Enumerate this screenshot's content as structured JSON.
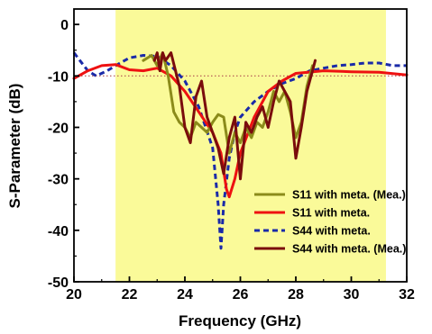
{
  "chart_data": {
    "type": "line",
    "title": "",
    "xlabel": "Frequency (GHz)",
    "ylabel": "S-Parameter (dB)",
    "xlim": [
      20,
      32
    ],
    "ylim": [
      -50,
      3
    ],
    "xticks": [
      "20",
      "22",
      "24",
      "26",
      "28",
      "30",
      "32"
    ],
    "yticks": [
      "0",
      "-10",
      "-20",
      "-30",
      "-40",
      "-50"
    ],
    "highlight_band": {
      "x": [
        21.5,
        31.25
      ],
      "color": "#fafa99"
    },
    "reference_line": {
      "y": -10,
      "color": "#b05050",
      "style": "dotted"
    },
    "legend_position": "bottom-right",
    "series": [
      {
        "name": "S11 with meta. (Mea.)",
        "color": "#8b8b1a",
        "style": "solid",
        "points": [
          [
            22.5,
            -7
          ],
          [
            22.8,
            -6
          ],
          [
            23.0,
            -8
          ],
          [
            23.2,
            -5.5
          ],
          [
            23.4,
            -10
          ],
          [
            23.6,
            -17
          ],
          [
            23.8,
            -19
          ],
          [
            24.0,
            -20
          ],
          [
            24.2,
            -22
          ],
          [
            24.4,
            -19
          ],
          [
            24.6,
            -20
          ],
          [
            24.8,
            -21
          ],
          [
            25.0,
            -19
          ],
          [
            25.2,
            -17.5
          ],
          [
            25.4,
            -18
          ],
          [
            25.6,
            -25
          ],
          [
            25.8,
            -21
          ],
          [
            26.0,
            -23
          ],
          [
            26.2,
            -20
          ],
          [
            26.4,
            -22
          ],
          [
            26.6,
            -19
          ],
          [
            26.8,
            -20
          ],
          [
            27.0,
            -17
          ],
          [
            27.2,
            -13
          ],
          [
            27.4,
            -15
          ],
          [
            27.6,
            -13
          ],
          [
            27.8,
            -17
          ],
          [
            28.0,
            -22
          ],
          [
            28.2,
            -19
          ],
          [
            28.4,
            -12
          ],
          [
            28.6,
            -8
          ]
        ]
      },
      {
        "name": "S11 with meta.",
        "color": "#ee1111",
        "style": "solid",
        "points": [
          [
            20.0,
            -10.5
          ],
          [
            20.5,
            -9
          ],
          [
            21.0,
            -8
          ],
          [
            21.5,
            -7.8
          ],
          [
            22.0,
            -8.8
          ],
          [
            22.5,
            -9
          ],
          [
            23.0,
            -8.5
          ],
          [
            23.5,
            -10
          ],
          [
            24.0,
            -13
          ],
          [
            24.5,
            -17
          ],
          [
            25.0,
            -21
          ],
          [
            25.3,
            -25
          ],
          [
            25.5,
            -32
          ],
          [
            25.6,
            -33.5
          ],
          [
            25.8,
            -30
          ],
          [
            26.0,
            -25
          ],
          [
            26.5,
            -18
          ],
          [
            27.0,
            -13
          ],
          [
            27.5,
            -11
          ],
          [
            28.0,
            -9.5
          ],
          [
            29.0,
            -9
          ],
          [
            30.0,
            -9.2
          ],
          [
            31.0,
            -9.3
          ],
          [
            32.0,
            -9.8
          ]
        ]
      },
      {
        "name": "S44 with meta.",
        "color": "#1a2aa8",
        "style": "dashed",
        "points": [
          [
            20.0,
            -5.5
          ],
          [
            20.5,
            -9
          ],
          [
            20.8,
            -10
          ],
          [
            21.2,
            -9
          ],
          [
            21.5,
            -8
          ],
          [
            22.0,
            -6.5
          ],
          [
            22.5,
            -6
          ],
          [
            23.0,
            -6.2
          ],
          [
            23.5,
            -8
          ],
          [
            24.0,
            -11
          ],
          [
            24.5,
            -16
          ],
          [
            25.0,
            -24
          ],
          [
            25.2,
            -35
          ],
          [
            25.3,
            -43.5
          ],
          [
            25.4,
            -35
          ],
          [
            25.6,
            -26
          ],
          [
            25.8,
            -21
          ],
          [
            26.0,
            -18
          ],
          [
            26.5,
            -15
          ],
          [
            27.0,
            -13
          ],
          [
            27.5,
            -11.5
          ],
          [
            28.0,
            -10.5
          ],
          [
            28.5,
            -9
          ],
          [
            29.0,
            -8.5
          ],
          [
            29.5,
            -8
          ],
          [
            30.0,
            -7.8
          ],
          [
            30.5,
            -7.5
          ],
          [
            31.0,
            -7.5
          ],
          [
            31.5,
            -8
          ],
          [
            32.0,
            -8
          ]
        ]
      },
      {
        "name": "S44 with meta. (Mea.)",
        "color": "#7a0c0c",
        "style": "solid",
        "points": [
          [
            22.9,
            -7
          ],
          [
            23.0,
            -5.5
          ],
          [
            23.1,
            -9
          ],
          [
            23.2,
            -5.5
          ],
          [
            23.3,
            -7
          ],
          [
            23.5,
            -5.5
          ],
          [
            23.8,
            -12
          ],
          [
            24.0,
            -20
          ],
          [
            24.2,
            -23
          ],
          [
            24.4,
            -14
          ],
          [
            24.6,
            -11
          ],
          [
            24.8,
            -18
          ],
          [
            25.0,
            -21
          ],
          [
            25.2,
            -24
          ],
          [
            25.4,
            -29
          ],
          [
            25.6,
            -22
          ],
          [
            25.8,
            -18
          ],
          [
            26.0,
            -30
          ],
          [
            26.2,
            -19
          ],
          [
            26.4,
            -21
          ],
          [
            26.6,
            -18
          ],
          [
            26.8,
            -16
          ],
          [
            27.0,
            -20
          ],
          [
            27.2,
            -15
          ],
          [
            27.4,
            -11
          ],
          [
            27.6,
            -13
          ],
          [
            27.8,
            -15
          ],
          [
            28.0,
            -26
          ],
          [
            28.2,
            -20
          ],
          [
            28.4,
            -13
          ],
          [
            28.6,
            -9
          ],
          [
            28.7,
            -7
          ]
        ]
      }
    ]
  }
}
